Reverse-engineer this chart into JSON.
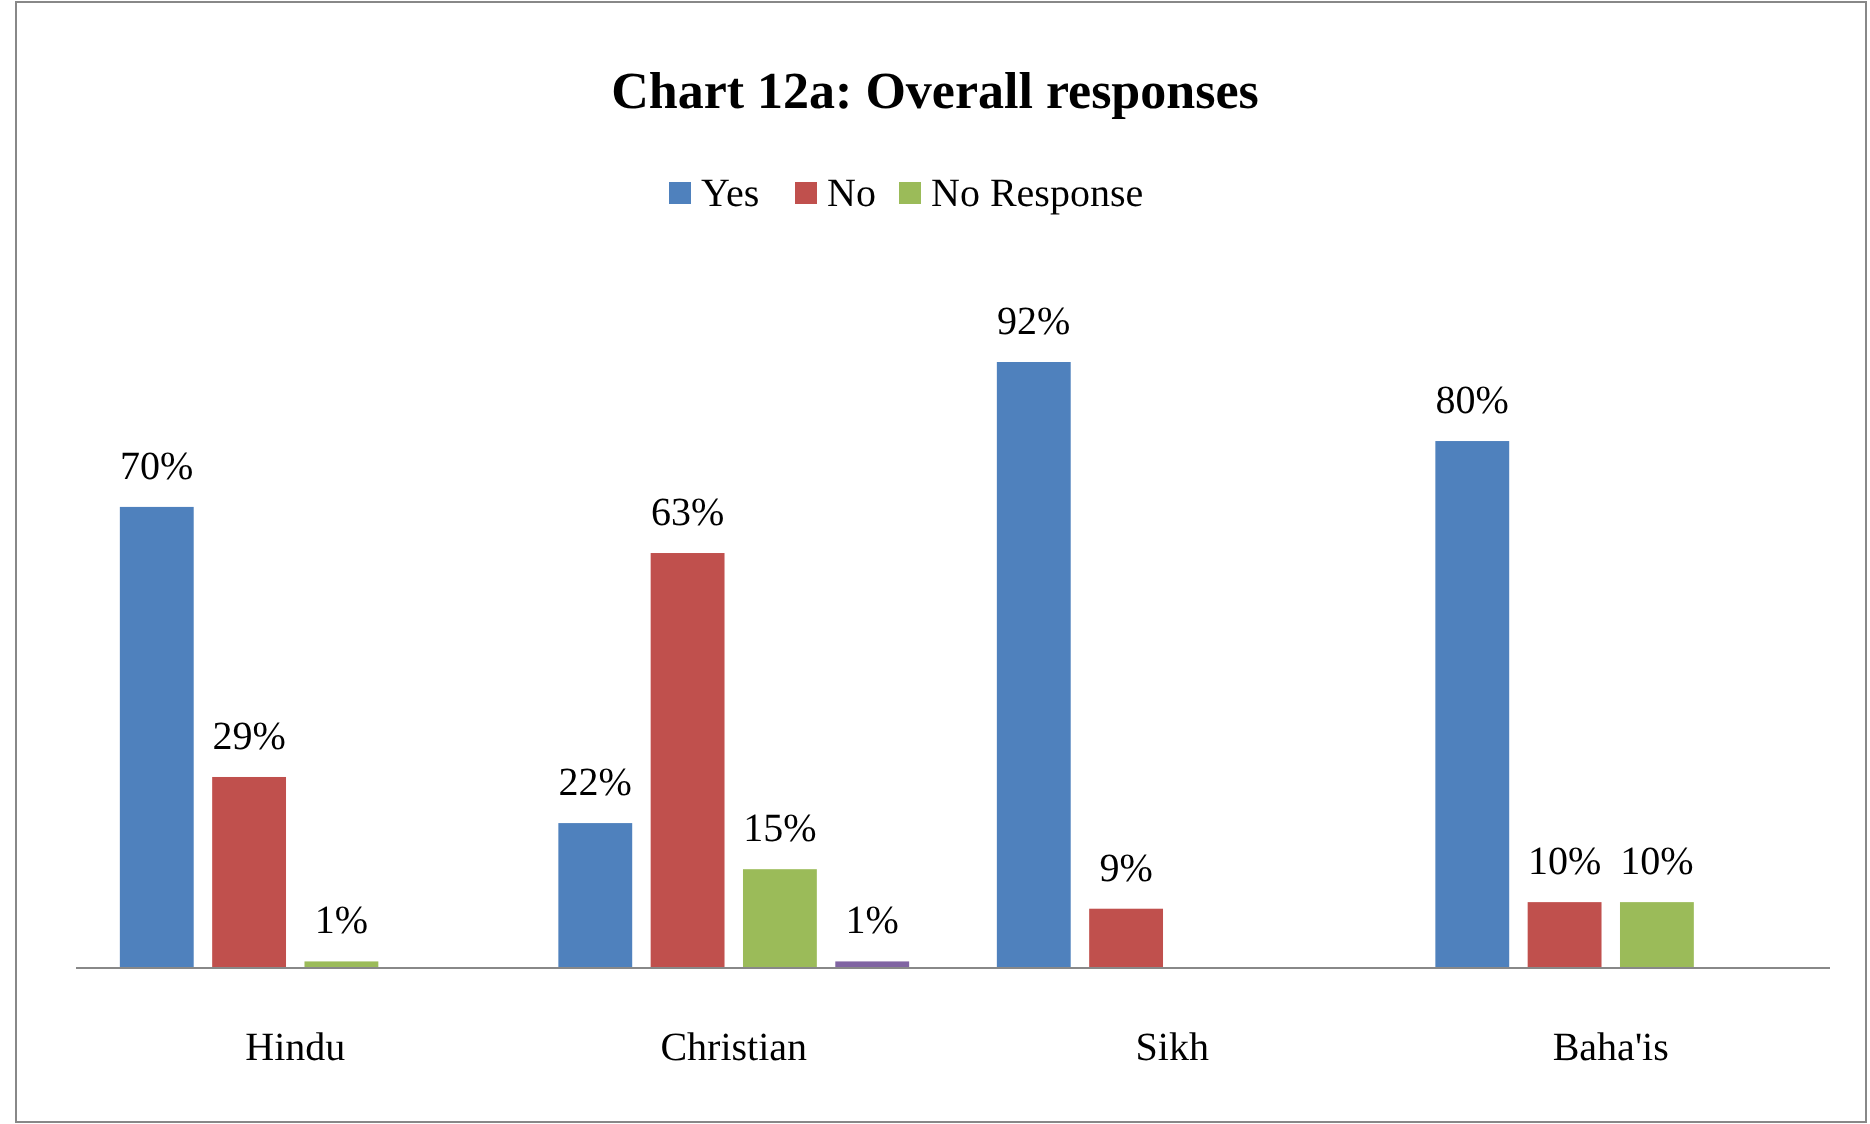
{
  "chart_data": {
    "type": "bar",
    "title": "Chart 12a: Overall responses",
    "categories": [
      "Hindu",
      "Christian",
      "Sikh",
      "Baha'is"
    ],
    "series": [
      {
        "name": "Yes",
        "color": "#4f81bd",
        "values": [
          70,
          22,
          92,
          80
        ],
        "value_labels": [
          "70%",
          "22%",
          "92%",
          "80%"
        ]
      },
      {
        "name": "No",
        "color": "#c0504d",
        "values": [
          29,
          63,
          9,
          10
        ],
        "value_labels": [
          "29%",
          "63%",
          "9%",
          "10%"
        ]
      },
      {
        "name": "No Response",
        "color": "#9bbb59",
        "values": [
          1,
          15,
          null,
          10
        ],
        "value_labels": [
          "1%",
          "15%",
          null,
          "10%"
        ]
      },
      {
        "color": "#8064a2",
        "values": [
          null,
          1,
          null,
          null
        ],
        "value_labels": [
          null,
          "1%",
          null,
          null
        ]
      }
    ],
    "legend": "top",
    "grid": false
  }
}
